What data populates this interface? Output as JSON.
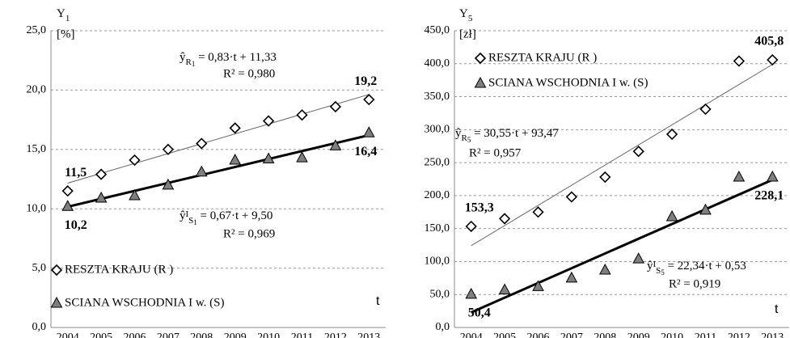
{
  "chart_data": [
    {
      "type": "scatter",
      "y_label": "Y",
      "y_label_sub": "1",
      "y_unit": "[%]",
      "x_label": "t",
      "categories": [
        "2004",
        "2005",
        "2006",
        "2007",
        "2008",
        "2009",
        "2010",
        "2011",
        "2012",
        "2013"
      ],
      "ylim": [
        0,
        25
      ],
      "yticks": [
        {
          "value": 0,
          "label": "0,0"
        },
        {
          "value": 5,
          "label": "5,0"
        },
        {
          "value": 10,
          "label": "10,0"
        },
        {
          "value": 15,
          "label": "15,0"
        },
        {
          "value": 20,
          "label": "20,0"
        },
        {
          "value": 25,
          "label": "25,0"
        }
      ],
      "grid": true,
      "legend": "lower left",
      "series": [
        {
          "name": "RESZTA KRAJU (R )",
          "marker": "diamond",
          "color": "#ffffff",
          "values": [
            11.5,
            12.9,
            14.1,
            15.0,
            15.5,
            16.8,
            17.4,
            17.9,
            18.6,
            19.2
          ],
          "value_labels": [
            "11,5",
            null,
            null,
            null,
            null,
            null,
            null,
            null,
            null,
            "19,2"
          ]
        },
        {
          "name": "SCIANA WSCHODNIA I w. (S)",
          "marker": "triangle",
          "color": "#7f7f7f",
          "values": [
            10.2,
            10.9,
            11.1,
            12.0,
            13.1,
            14.1,
            14.2,
            14.3,
            15.3,
            16.4
          ],
          "value_labels": [
            "10,2",
            null,
            null,
            null,
            null,
            null,
            null,
            null,
            null,
            "16,4"
          ]
        }
      ],
      "trendlines": [
        {
          "slope": 0.83,
          "intercept": 11.33,
          "color": "#666666",
          "symbol": "ŷ",
          "sub": "R",
          "subsub": "1",
          "equation": " = 0,83·t + 11,33",
          "r2": "R² = 0,980"
        },
        {
          "slope": 0.67,
          "intercept": 9.5,
          "color": "#000000",
          "symbol": "ŷ",
          "sup": "I",
          "sub": "S",
          "subsub": "1",
          "equation": " = 0,67·t + 9,50",
          "r2": "R² = 0,969"
        }
      ]
    },
    {
      "type": "scatter",
      "y_label": "Y",
      "y_label_sub": "5",
      "y_unit": "[zł]",
      "x_label": "t",
      "categories": [
        "2004",
        "2005",
        "2006",
        "2007",
        "2008",
        "2009",
        "2010",
        "2011",
        "2012",
        "2013"
      ],
      "ylim": [
        0,
        450
      ],
      "yticks": [
        {
          "value": 0,
          "label": "0,0"
        },
        {
          "value": 50,
          "label": "50,0"
        },
        {
          "value": 100,
          "label": "100,0"
        },
        {
          "value": 150,
          "label": "150,0"
        },
        {
          "value": 200,
          "label": "200,0"
        },
        {
          "value": 250,
          "label": "250,0"
        },
        {
          "value": 300,
          "label": "300,0"
        },
        {
          "value": 350,
          "label": "350,0"
        },
        {
          "value": 400,
          "label": "400,0"
        },
        {
          "value": 450,
          "label": "450,0"
        }
      ],
      "grid": true,
      "legend": "upper left",
      "series": [
        {
          "name": "RESZTA KRAJU (R )",
          "marker": "diamond",
          "color": "#ffffff",
          "values": [
            153.3,
            165,
            175,
            198,
            228,
            267,
            293,
            331,
            404,
            405.8
          ],
          "value_labels": [
            "153,3",
            null,
            null,
            null,
            null,
            null,
            null,
            null,
            null,
            "405,8"
          ]
        },
        {
          "name": "SCIANA WSCHODNIA I w. (S)",
          "marker": "triangle",
          "color": "#7f7f7f",
          "values": [
            50.4,
            57,
            62,
            75,
            87,
            104,
            168,
            178,
            228,
            228.1
          ],
          "value_labels": [
            "50,4",
            null,
            null,
            null,
            null,
            null,
            null,
            null,
            null,
            "228,1"
          ]
        }
      ],
      "trendlines": [
        {
          "slope": 30.55,
          "intercept": 93.47,
          "color": "#666666",
          "symbol": "ŷ",
          "sub": "R",
          "subsub": "5",
          "equation": " = 30,55·t + 93,47",
          "r2": "R² = 0,957"
        },
        {
          "slope": 22.34,
          "intercept": 0.53,
          "color": "#000000",
          "symbol": "ŷ",
          "sup": "I",
          "sub": "S",
          "subsub": "5",
          "equation": " = 22,34·t + 0,53",
          "r2": "R² = 0,919"
        }
      ]
    }
  ]
}
